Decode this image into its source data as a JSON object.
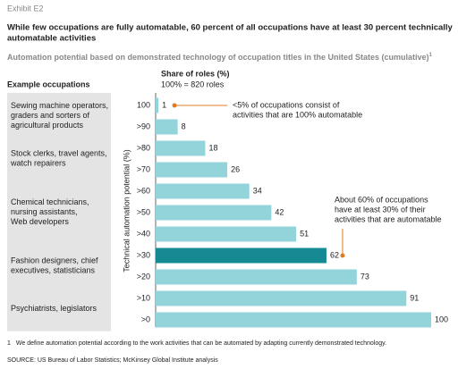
{
  "chart_data": {
    "type": "bar",
    "orientation": "horizontal",
    "exhibit": "Exhibit E2",
    "title": [
      "While few occupations are fully automatable, 60 percent of all occupations have at least 30 percent technically",
      "automatable activities"
    ],
    "subtitle": "Automation potential based on demonstrated technology of occupation titles in the United States (cumulative)",
    "subtitle_note": "1",
    "occupations_header": "Example occupations",
    "occupations": [
      [
        "Sewing machine operators,",
        "graders and sorters of",
        "agricultural products"
      ],
      [
        "Stock clerks, travel agents,",
        "watch repairers"
      ],
      [
        "Chemical technicians,",
        "nursing assistants,",
        "Web developers"
      ],
      [
        "Fashion designers, chief",
        "executives, statisticians"
      ],
      [
        "Psychiatrists, legislators"
      ]
    ],
    "ylabel": "Technical automation potential (%)",
    "value_header": [
      "Share of roles (%)",
      "100% = 820 roles"
    ],
    "categories": [
      "100",
      ">90",
      ">80",
      ">70",
      ">60",
      ">50",
      ">40",
      ">30",
      ">20",
      ">10",
      ">0"
    ],
    "values": [
      1,
      8,
      18,
      26,
      34,
      42,
      51,
      62,
      73,
      91,
      100
    ],
    "xlim": [
      0,
      100
    ],
    "color": "#93d4da",
    "highlight_color": "#168a93",
    "highlight_index": 7,
    "annotations": [
      {
        "lines": [
          "<5% of occupations consist of",
          "activities that are 100% automatable"
        ],
        "color": "#e07b22",
        "category_index": 0
      },
      {
        "lines": [
          "About 60% of occupations",
          "have at least 30% of their",
          "activities that are automatable"
        ],
        "color": "#e07b22",
        "category_index": 7
      }
    ],
    "footnote": {
      "marker": "1",
      "text": "We define automation potential according to the work activities that can be automated by adapting currently demonstrated technology."
    },
    "source": "SOURCE: US Bureau of Labor Statistics; McKinsey Global Institute analysis"
  }
}
